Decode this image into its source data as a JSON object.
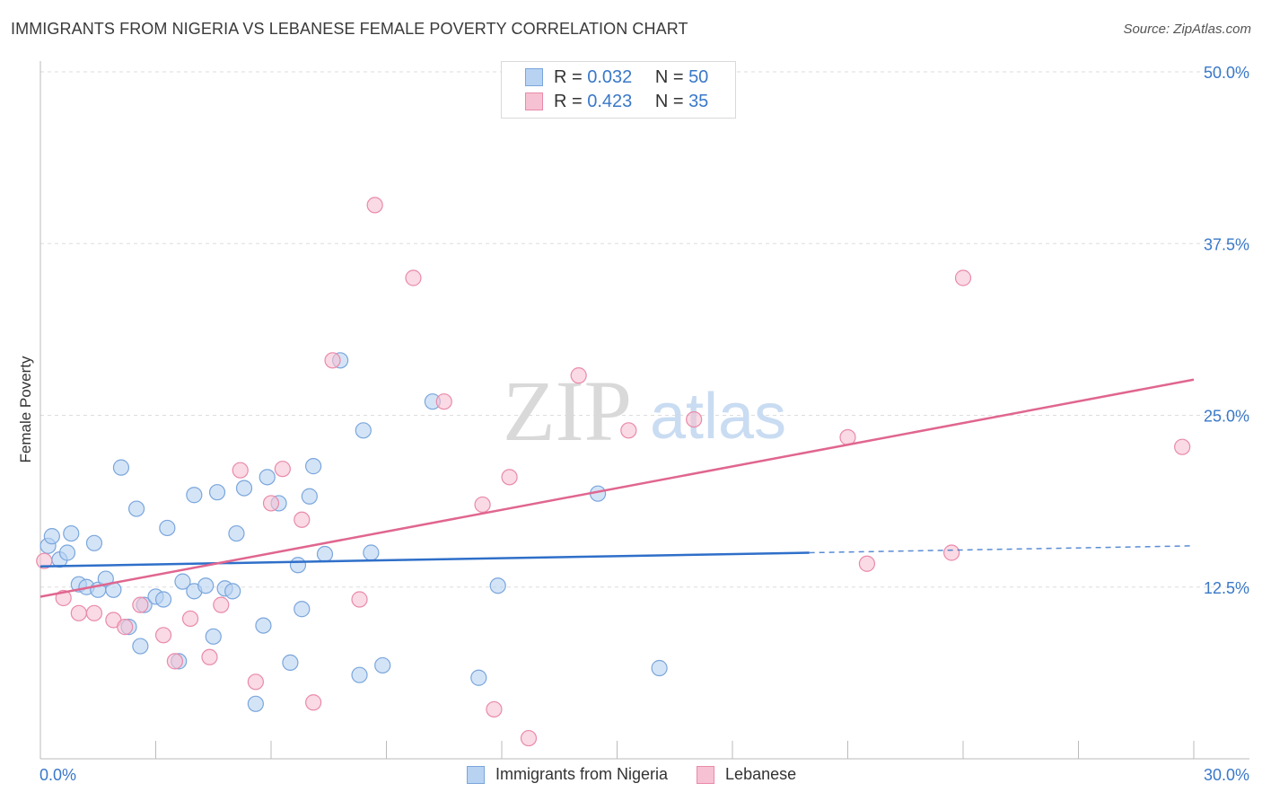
{
  "header": {
    "title": "IMMIGRANTS FROM NIGERIA VS LEBANESE FEMALE POVERTY CORRELATION CHART",
    "source": "Source: ZipAtlas.com"
  },
  "legend_top": {
    "series1": {
      "r_label": "R =",
      "r_value": "0.032",
      "n_label": "N =",
      "n_value": "50"
    },
    "series2": {
      "r_label": "R =",
      "r_value": "0.423",
      "n_label": "N =",
      "n_value": "35"
    }
  },
  "legend_bottom": {
    "series1": "Immigrants from Nigeria",
    "series2": "Lebanese"
  },
  "watermark": {
    "zip": "ZIP",
    "atlas": "atlas"
  },
  "colors": {
    "blue_fill": "#b8d2f2",
    "blue_stroke": "#7aa6dc",
    "blue_line": "#2f6fc9",
    "pink_fill": "#f6c1d2",
    "pink_stroke": "#e98aa9",
    "pink_line": "#e0668f",
    "tick_label": "#3a78c8",
    "grid": "#dddddd"
  },
  "chart_data": {
    "type": "scatter",
    "title": "IMMIGRANTS FROM NIGERIA VS LEBANESE FEMALE POVERTY CORRELATION CHART",
    "xlabel": "",
    "ylabel": "Female Poverty",
    "xlim": [
      0,
      30
    ],
    "ylim": [
      0,
      50
    ],
    "x_tick_labels": [
      "0.0%",
      "30.0%"
    ],
    "y_ticks": [
      12.5,
      25.0,
      37.5,
      50.0
    ],
    "y_tick_labels": [
      "12.5%",
      "25.0%",
      "37.5%",
      "50.0%"
    ],
    "grid": true,
    "series": [
      {
        "name": "Immigrants from Nigeria",
        "color": "#b8d2f2",
        "trend": {
          "x": [
            0,
            20
          ],
          "y": [
            14.0,
            15.0
          ],
          "dashed_to": [
            30,
            15.5
          ]
        },
        "points": [
          [
            0.2,
            15.5
          ],
          [
            0.3,
            16.2
          ],
          [
            0.5,
            14.5
          ],
          [
            0.7,
            15.0
          ],
          [
            0.8,
            16.4
          ],
          [
            1.0,
            12.7
          ],
          [
            1.2,
            12.5
          ],
          [
            1.4,
            15.7
          ],
          [
            1.5,
            12.3
          ],
          [
            1.7,
            13.1
          ],
          [
            1.9,
            12.3
          ],
          [
            2.1,
            21.2
          ],
          [
            2.3,
            9.6
          ],
          [
            2.5,
            18.2
          ],
          [
            2.6,
            8.2
          ],
          [
            2.7,
            11.2
          ],
          [
            3.0,
            11.8
          ],
          [
            3.2,
            11.6
          ],
          [
            3.3,
            16.8
          ],
          [
            3.6,
            7.1
          ],
          [
            3.7,
            12.9
          ],
          [
            4.0,
            12.2
          ],
          [
            4.0,
            19.2
          ],
          [
            4.3,
            12.6
          ],
          [
            4.5,
            8.9
          ],
          [
            4.6,
            19.4
          ],
          [
            4.8,
            12.4
          ],
          [
            5.0,
            12.2
          ],
          [
            5.1,
            16.4
          ],
          [
            5.3,
            19.7
          ],
          [
            5.6,
            4.0
          ],
          [
            5.8,
            9.7
          ],
          [
            5.9,
            20.5
          ],
          [
            6.2,
            18.6
          ],
          [
            6.5,
            7.0
          ],
          [
            6.7,
            14.1
          ],
          [
            6.8,
            10.9
          ],
          [
            7.0,
            19.1
          ],
          [
            7.1,
            21.3
          ],
          [
            7.4,
            14.9
          ],
          [
            7.8,
            29.0
          ],
          [
            8.3,
            6.1
          ],
          [
            8.4,
            23.9
          ],
          [
            8.6,
            15.0
          ],
          [
            8.9,
            6.8
          ],
          [
            10.2,
            26.0
          ],
          [
            11.4,
            5.9
          ],
          [
            11.9,
            12.6
          ],
          [
            14.5,
            19.3
          ],
          [
            16.1,
            6.6
          ]
        ]
      },
      {
        "name": "Lebanese",
        "color": "#f6c1d2",
        "trend": {
          "x": [
            0,
            30
          ],
          "y": [
            11.8,
            27.6
          ]
        },
        "points": [
          [
            0.1,
            14.4
          ],
          [
            0.6,
            11.7
          ],
          [
            1.0,
            10.6
          ],
          [
            1.4,
            10.6
          ],
          [
            1.9,
            10.1
          ],
          [
            2.2,
            9.6
          ],
          [
            2.6,
            11.2
          ],
          [
            3.2,
            9.0
          ],
          [
            3.5,
            7.1
          ],
          [
            3.9,
            10.2
          ],
          [
            4.4,
            7.4
          ],
          [
            4.7,
            11.2
          ],
          [
            5.2,
            21.0
          ],
          [
            5.6,
            5.6
          ],
          [
            6.0,
            18.6
          ],
          [
            6.3,
            21.1
          ],
          [
            6.8,
            17.4
          ],
          [
            7.1,
            4.1
          ],
          [
            7.6,
            29.0
          ],
          [
            8.3,
            11.6
          ],
          [
            8.7,
            40.3
          ],
          [
            9.7,
            35.0
          ],
          [
            10.5,
            26.0
          ],
          [
            11.5,
            18.5
          ],
          [
            11.8,
            3.6
          ],
          [
            12.2,
            20.5
          ],
          [
            12.7,
            1.5
          ],
          [
            14.0,
            27.9
          ],
          [
            15.3,
            23.9
          ],
          [
            17.0,
            24.7
          ],
          [
            21.0,
            23.4
          ],
          [
            21.5,
            14.2
          ],
          [
            23.7,
            15.0
          ],
          [
            24.0,
            35.0
          ],
          [
            29.7,
            22.7
          ]
        ]
      }
    ]
  }
}
